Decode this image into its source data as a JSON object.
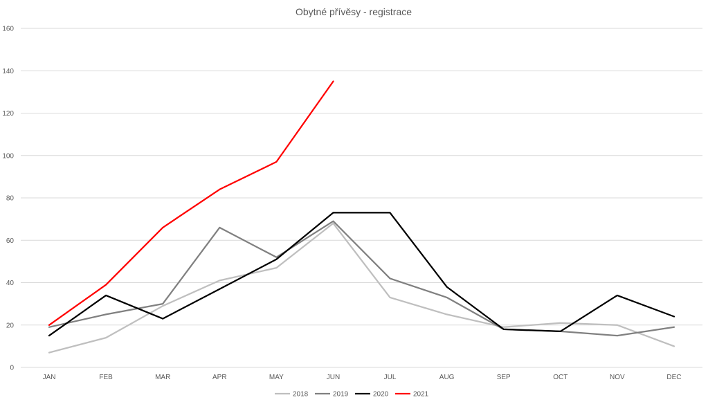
{
  "chart_data": {
    "type": "line",
    "title": "Obytné přívěsy - registrace",
    "xlabel": "",
    "ylabel": "",
    "categories": [
      "JAN",
      "FEB",
      "MAR",
      "APR",
      "MAY",
      "JUN",
      "JUL",
      "AUG",
      "SEP",
      "OCT",
      "NOV",
      "DEC"
    ],
    "ylim": [
      0,
      160
    ],
    "yticks": [
      0,
      20,
      40,
      60,
      80,
      100,
      120,
      140,
      160
    ],
    "grid": true,
    "legend_position": "bottom",
    "series": [
      {
        "name": "2018",
        "color": "#bfbfbf",
        "values": [
          7,
          14,
          29,
          41,
          47,
          68,
          33,
          25,
          19,
          21,
          20,
          10
        ]
      },
      {
        "name": "2019",
        "color": "#808080",
        "values": [
          19,
          25,
          30,
          66,
          52,
          69,
          42,
          33,
          18,
          17,
          15,
          19
        ]
      },
      {
        "name": "2020",
        "color": "#000000",
        "values": [
          15,
          34,
          23,
          37,
          51,
          73,
          73,
          38,
          18,
          17,
          34,
          24
        ]
      },
      {
        "name": "2021",
        "color": "#ff0000",
        "values": [
          20,
          39,
          66,
          84,
          97,
          135,
          null,
          null,
          null,
          null,
          null,
          null
        ]
      }
    ]
  }
}
